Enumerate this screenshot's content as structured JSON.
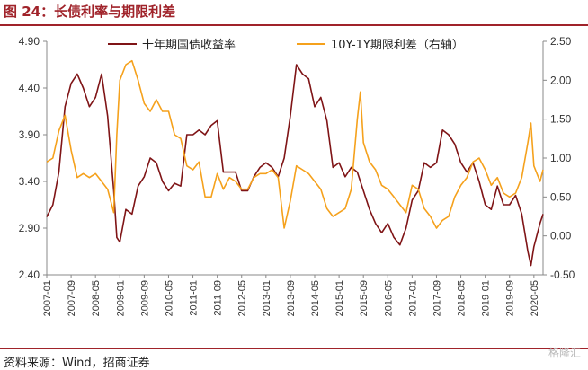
{
  "figure_title": "图 24：长债利率与期限利差",
  "source_text": "资料来源：Wind，招商证券",
  "watermark": "格隆汇",
  "colors": {
    "accent": "#a0232a",
    "series1": "#7f1416",
    "series2": "#f5a11c"
  },
  "chart_data": {
    "type": "line",
    "title": "",
    "legend_placement": "top",
    "grid": false,
    "xlabel": "",
    "ylabel": "",
    "y_left": {
      "ticks": [
        "4.90",
        "4.40",
        "3.90",
        "3.40",
        "2.90",
        "2.40"
      ],
      "range": [
        2.4,
        4.9
      ]
    },
    "y_right": {
      "ticks": [
        "2.50",
        "2.00",
        "1.50",
        "1.00",
        "0.50",
        "0.00",
        "-0.50"
      ],
      "range": [
        -0.5,
        2.5
      ]
    },
    "x_ticks": [
      "2007-01",
      "2007-09",
      "2008-05",
      "2009-01",
      "2009-09",
      "2010-05",
      "2011-01",
      "2011-09",
      "2012-05",
      "2013-01",
      "2013-09",
      "2014-05",
      "2015-01",
      "2015-09",
      "2016-05",
      "2017-01",
      "2017-09",
      "2018-05",
      "2019-01",
      "2019-09",
      "2020-05"
    ],
    "x_range": [
      "2007-01",
      "2020-08"
    ],
    "series": [
      {
        "name": "十年期国债收益率",
        "axis": "left",
        "points": [
          [
            "2007-01",
            3.02
          ],
          [
            "2007-03",
            3.15
          ],
          [
            "2007-05",
            3.5
          ],
          [
            "2007-07",
            4.2
          ],
          [
            "2007-09",
            4.45
          ],
          [
            "2007-11",
            4.55
          ],
          [
            "2008-01",
            4.4
          ],
          [
            "2008-03",
            4.2
          ],
          [
            "2008-05",
            4.3
          ],
          [
            "2008-07",
            4.55
          ],
          [
            "2008-09",
            4.1
          ],
          [
            "2008-11",
            3.3
          ],
          [
            "2008-12",
            2.8
          ],
          [
            "2009-01",
            2.75
          ],
          [
            "2009-03",
            3.1
          ],
          [
            "2009-05",
            3.05
          ],
          [
            "2009-07",
            3.35
          ],
          [
            "2009-09",
            3.45
          ],
          [
            "2009-11",
            3.65
          ],
          [
            "2010-01",
            3.6
          ],
          [
            "2010-03",
            3.4
          ],
          [
            "2010-05",
            3.3
          ],
          [
            "2010-07",
            3.38
          ],
          [
            "2010-09",
            3.35
          ],
          [
            "2010-11",
            3.9
          ],
          [
            "2011-01",
            3.9
          ],
          [
            "2011-03",
            3.95
          ],
          [
            "2011-05",
            3.9
          ],
          [
            "2011-07",
            4.0
          ],
          [
            "2011-09",
            4.05
          ],
          [
            "2011-11",
            3.5
          ],
          [
            "2012-01",
            3.5
          ],
          [
            "2012-03",
            3.5
          ],
          [
            "2012-05",
            3.3
          ],
          [
            "2012-07",
            3.3
          ],
          [
            "2012-09",
            3.45
          ],
          [
            "2012-11",
            3.55
          ],
          [
            "2013-01",
            3.6
          ],
          [
            "2013-03",
            3.55
          ],
          [
            "2013-05",
            3.45
          ],
          [
            "2013-07",
            3.65
          ],
          [
            "2013-09",
            4.1
          ],
          [
            "2013-11",
            4.65
          ],
          [
            "2014-01",
            4.55
          ],
          [
            "2014-03",
            4.5
          ],
          [
            "2014-05",
            4.2
          ],
          [
            "2014-07",
            4.3
          ],
          [
            "2014-09",
            4.05
          ],
          [
            "2014-11",
            3.55
          ],
          [
            "2015-01",
            3.6
          ],
          [
            "2015-03",
            3.45
          ],
          [
            "2015-05",
            3.55
          ],
          [
            "2015-07",
            3.5
          ],
          [
            "2015-09",
            3.3
          ],
          [
            "2015-11",
            3.1
          ],
          [
            "2016-01",
            2.95
          ],
          [
            "2016-03",
            2.85
          ],
          [
            "2016-05",
            2.95
          ],
          [
            "2016-07",
            2.8
          ],
          [
            "2016-09",
            2.72
          ],
          [
            "2016-11",
            2.9
          ],
          [
            "2017-01",
            3.2
          ],
          [
            "2017-03",
            3.3
          ],
          [
            "2017-05",
            3.6
          ],
          [
            "2017-07",
            3.55
          ],
          [
            "2017-09",
            3.6
          ],
          [
            "2017-11",
            3.95
          ],
          [
            "2018-01",
            3.9
          ],
          [
            "2018-03",
            3.8
          ],
          [
            "2018-05",
            3.6
          ],
          [
            "2018-07",
            3.5
          ],
          [
            "2018-09",
            3.6
          ],
          [
            "2018-11",
            3.4
          ],
          [
            "2019-01",
            3.15
          ],
          [
            "2019-03",
            3.1
          ],
          [
            "2019-05",
            3.35
          ],
          [
            "2019-07",
            3.15
          ],
          [
            "2019-09",
            3.15
          ],
          [
            "2019-11",
            3.25
          ],
          [
            "2020-01",
            3.05
          ],
          [
            "2020-03",
            2.65
          ],
          [
            "2020-04",
            2.5
          ],
          [
            "2020-05",
            2.7
          ],
          [
            "2020-07",
            2.95
          ],
          [
            "2020-08",
            3.05
          ]
        ]
      },
      {
        "name": "10Y-1Y期限利差（右轴）",
        "axis": "right",
        "points": [
          [
            "2007-01",
            0.95
          ],
          [
            "2007-03",
            1.0
          ],
          [
            "2007-05",
            1.35
          ],
          [
            "2007-07",
            1.55
          ],
          [
            "2007-09",
            1.1
          ],
          [
            "2007-11",
            0.75
          ],
          [
            "2008-01",
            0.8
          ],
          [
            "2008-03",
            0.75
          ],
          [
            "2008-05",
            0.8
          ],
          [
            "2008-07",
            0.7
          ],
          [
            "2008-09",
            0.6
          ],
          [
            "2008-11",
            0.3
          ],
          [
            "2008-12",
            1.3
          ],
          [
            "2009-01",
            2.0
          ],
          [
            "2009-03",
            2.2
          ],
          [
            "2009-05",
            2.25
          ],
          [
            "2009-07",
            2.0
          ],
          [
            "2009-09",
            1.7
          ],
          [
            "2009-11",
            1.6
          ],
          [
            "2010-01",
            1.75
          ],
          [
            "2010-03",
            1.6
          ],
          [
            "2010-05",
            1.6
          ],
          [
            "2010-07",
            1.3
          ],
          [
            "2010-09",
            1.25
          ],
          [
            "2010-11",
            0.9
          ],
          [
            "2011-01",
            0.85
          ],
          [
            "2011-03",
            0.95
          ],
          [
            "2011-05",
            0.5
          ],
          [
            "2011-07",
            0.5
          ],
          [
            "2011-09",
            0.8
          ],
          [
            "2011-11",
            0.6
          ],
          [
            "2012-01",
            0.75
          ],
          [
            "2012-03",
            0.7
          ],
          [
            "2012-05",
            0.6
          ],
          [
            "2012-07",
            0.6
          ],
          [
            "2012-09",
            0.75
          ],
          [
            "2012-11",
            0.8
          ],
          [
            "2013-01",
            0.8
          ],
          [
            "2013-03",
            0.85
          ],
          [
            "2013-05",
            0.75
          ],
          [
            "2013-07",
            0.1
          ],
          [
            "2013-09",
            0.45
          ],
          [
            "2013-11",
            0.9
          ],
          [
            "2014-01",
            0.85
          ],
          [
            "2014-03",
            0.8
          ],
          [
            "2014-05",
            0.7
          ],
          [
            "2014-07",
            0.6
          ],
          [
            "2014-09",
            0.35
          ],
          [
            "2014-11",
            0.25
          ],
          [
            "2015-01",
            0.3
          ],
          [
            "2015-03",
            0.35
          ],
          [
            "2015-05",
            0.6
          ],
          [
            "2015-07",
            1.5
          ],
          [
            "2015-08",
            1.85
          ],
          [
            "2015-09",
            1.2
          ],
          [
            "2015-11",
            0.95
          ],
          [
            "2016-01",
            0.85
          ],
          [
            "2016-03",
            0.65
          ],
          [
            "2016-05",
            0.6
          ],
          [
            "2016-07",
            0.5
          ],
          [
            "2016-09",
            0.4
          ],
          [
            "2016-11",
            0.3
          ],
          [
            "2017-01",
            0.65
          ],
          [
            "2017-03",
            0.6
          ],
          [
            "2017-05",
            0.35
          ],
          [
            "2017-07",
            0.25
          ],
          [
            "2017-09",
            0.1
          ],
          [
            "2017-11",
            0.2
          ],
          [
            "2018-01",
            0.25
          ],
          [
            "2018-03",
            0.5
          ],
          [
            "2018-05",
            0.65
          ],
          [
            "2018-07",
            0.75
          ],
          [
            "2018-09",
            0.95
          ],
          [
            "2018-11",
            1.0
          ],
          [
            "2019-01",
            0.85
          ],
          [
            "2019-03",
            0.65
          ],
          [
            "2019-05",
            0.75
          ],
          [
            "2019-07",
            0.55
          ],
          [
            "2019-09",
            0.5
          ],
          [
            "2019-11",
            0.55
          ],
          [
            "2020-01",
            0.75
          ],
          [
            "2020-03",
            1.2
          ],
          [
            "2020-04",
            1.45
          ],
          [
            "2020-05",
            0.9
          ],
          [
            "2020-07",
            0.7
          ],
          [
            "2020-08",
            0.85
          ]
        ]
      }
    ]
  }
}
